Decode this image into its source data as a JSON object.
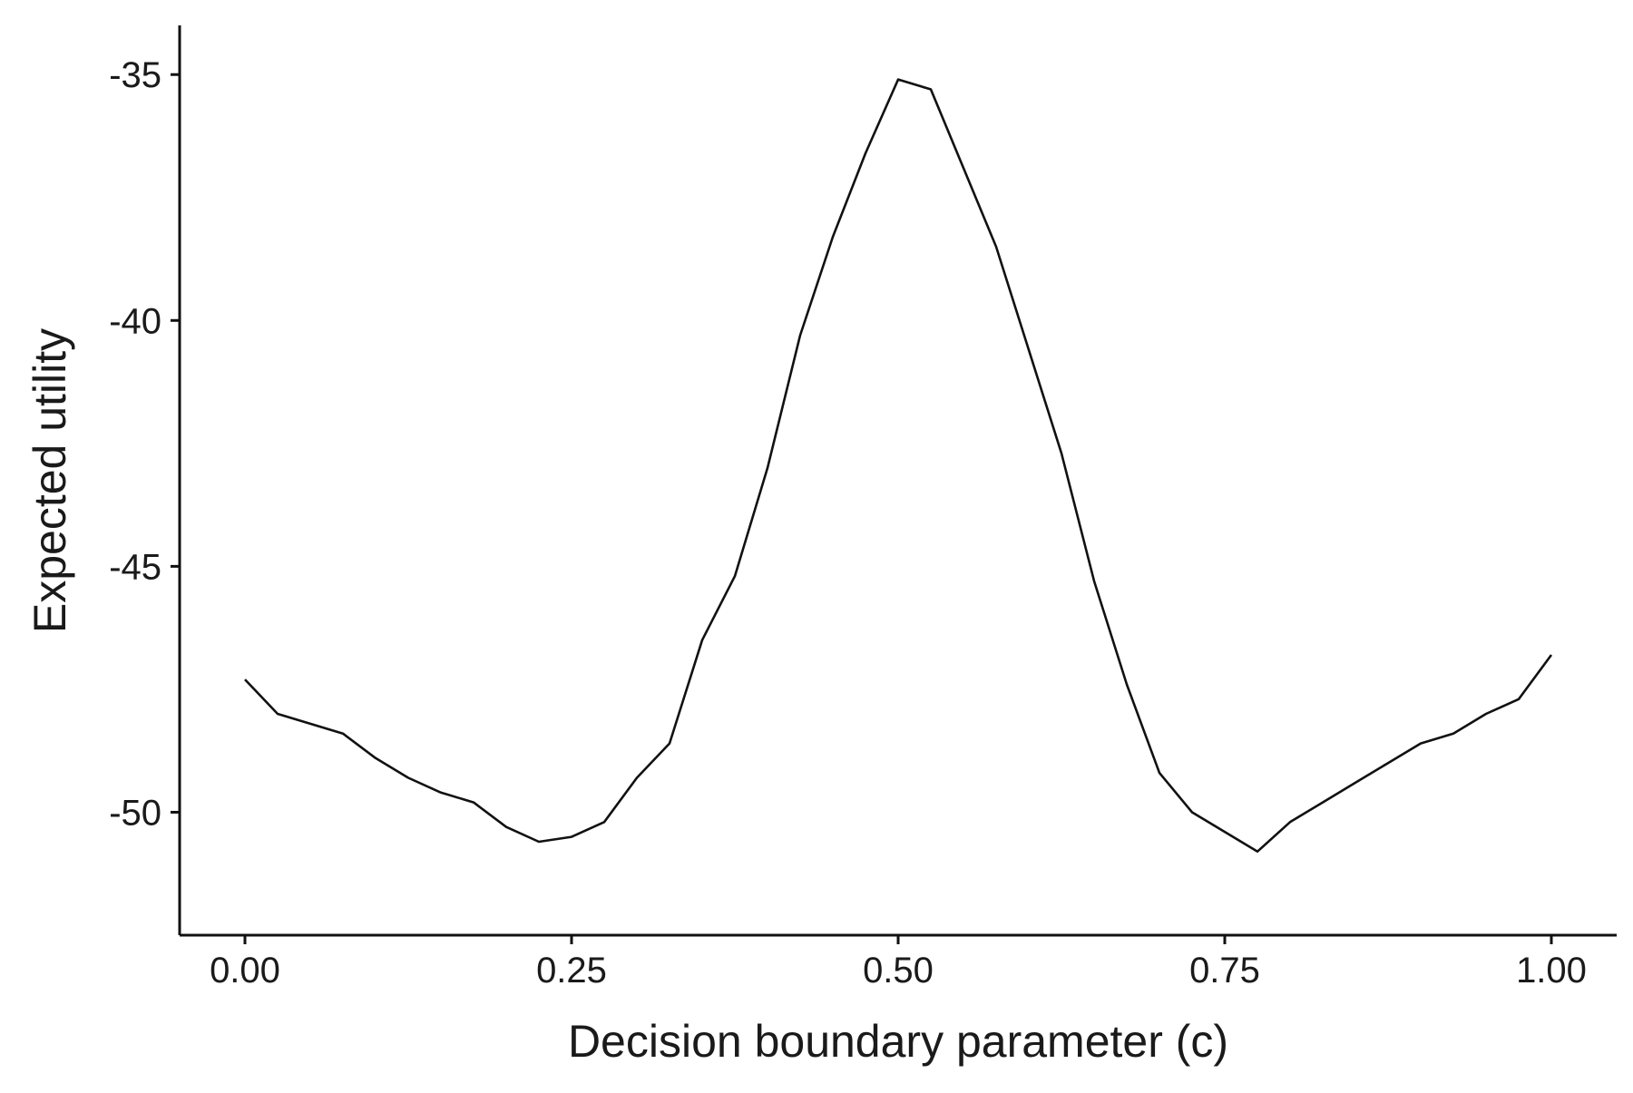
{
  "chart_data": {
    "type": "line",
    "title": "",
    "xlabel": "Decision boundary parameter (c)",
    "ylabel": "Expected utility",
    "xlim": [
      -0.05,
      1.05
    ],
    "ylim": [
      -52.5,
      -34.0
    ],
    "x_ticks": [
      0.0,
      0.25,
      0.5,
      0.75,
      1.0
    ],
    "x_tick_labels": [
      "0.00",
      "0.25",
      "0.50",
      "0.75",
      "1.00"
    ],
    "y_ticks": [
      -50,
      -45,
      -40,
      -35
    ],
    "y_tick_labels": [
      "-50",
      "-45",
      "-40",
      "-35"
    ],
    "grid": false,
    "legend": "none",
    "line_color": "#111111",
    "series": [
      {
        "x": [
          0.0,
          0.025,
          0.05,
          0.075,
          0.1,
          0.125,
          0.15,
          0.175,
          0.2,
          0.225,
          0.25,
          0.275,
          0.3,
          0.325,
          0.35,
          0.375,
          0.4,
          0.425,
          0.45,
          0.475,
          0.5,
          0.525,
          0.55,
          0.575,
          0.6,
          0.625,
          0.65,
          0.675,
          0.7,
          0.725,
          0.75,
          0.775,
          0.8,
          0.825,
          0.85,
          0.875,
          0.9,
          0.925,
          0.95,
          0.975,
          1.0
        ],
        "y": [
          -47.3,
          -48.0,
          -48.2,
          -48.4,
          -48.9,
          -49.3,
          -49.6,
          -49.8,
          -50.3,
          -50.6,
          -50.5,
          -50.2,
          -49.3,
          -48.6,
          -46.5,
          -45.2,
          -43.0,
          -40.3,
          -38.3,
          -36.6,
          -35.1,
          -35.3,
          -36.9,
          -38.5,
          -40.6,
          -42.7,
          -45.3,
          -47.4,
          -49.2,
          -50.0,
          -50.4,
          -50.8,
          -50.2,
          -49.8,
          -49.4,
          -49.0,
          -48.6,
          -48.4,
          -48.0,
          -47.7,
          -46.8
        ]
      }
    ]
  }
}
